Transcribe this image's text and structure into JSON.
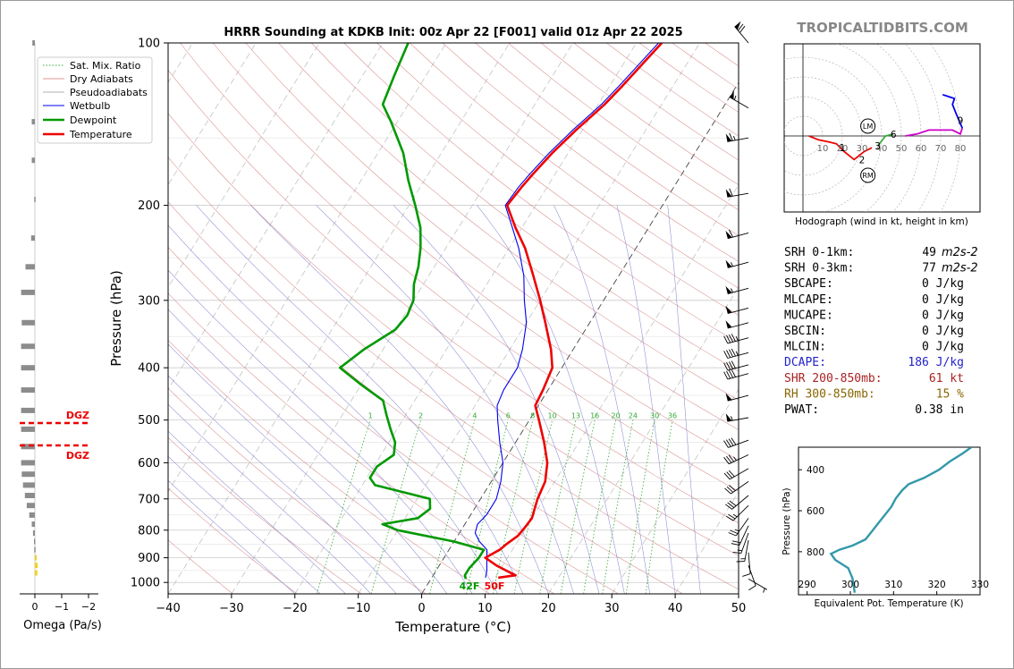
{
  "watermark": "TROPICALTIDBITS.COM",
  "chart_data": [
    {
      "type": "line",
      "subtype": "skew-t",
      "title": "HRRR Sounding at KDKB Init: 00z Apr 22 [F001] valid 01z Apr 22 2025",
      "xlabel": "Temperature (°C)",
      "ylabel": "Pressure (hPa)",
      "xlim": [
        -40,
        50
      ],
      "ylim": [
        1050,
        100
      ],
      "yscale": "log",
      "grid": true,
      "x_ticks": [
        -40,
        -30,
        -20,
        -10,
        0,
        10,
        20,
        30,
        40,
        50
      ],
      "x_tick_labels": [
        "−40",
        "−30",
        "−20",
        "−10",
        "0",
        "10",
        "20",
        "30",
        "40",
        "50"
      ],
      "y_ticks": [
        100,
        200,
        300,
        400,
        500,
        600,
        700,
        800,
        900,
        1000
      ],
      "y_tick_labels": [
        "100",
        "200",
        "300",
        "400",
        "500",
        "600",
        "700",
        "800",
        "900",
        "1000"
      ],
      "legend": {
        "placement": "top-left",
        "entries": [
          "Sat. Mix. Ratio",
          "Dry Adiabats",
          "Pseudoadiabats",
          "Wetbulb",
          "Dewpoint",
          "Temperature"
        ]
      },
      "mixing_ratio_labels": [
        "1",
        "2",
        "4",
        "6",
        "8",
        "10",
        "13",
        "16",
        "20",
        "24",
        "30",
        "36"
      ],
      "surface_labels": {
        "dewpoint": "42F",
        "temperature": "50F"
      },
      "colors": {
        "temperature": "#ee0000",
        "dewpoint": "#009900",
        "wetbulb": "#0000ee",
        "mixing_ratio": "#33aa33",
        "dry_adiabat": "#d07070",
        "pseudoadiabat": "#7777cc"
      },
      "series": [
        {
          "name": "Temperature",
          "points": [
            [
              980,
              10.5
            ],
            [
              970,
              13.0
            ],
            [
              955,
              11.5
            ],
            [
              930,
              9.0
            ],
            [
              900,
              6.5
            ],
            [
              870,
              8.0
            ],
            [
              850,
              8.5
            ],
            [
              820,
              9.5
            ],
            [
              790,
              9.8
            ],
            [
              760,
              10.0
            ],
            [
              730,
              9.5
            ],
            [
              700,
              9.0
            ],
            [
              650,
              8.5
            ],
            [
              600,
              7.0
            ],
            [
              550,
              4.5
            ],
            [
              500,
              1.5
            ],
            [
              470,
              -0.5
            ],
            [
              440,
              -0.8
            ],
            [
              400,
              -1.5
            ],
            [
              370,
              -3.5
            ],
            [
              330,
              -7.0
            ],
            [
              300,
              -10.0
            ],
            [
              270,
              -13.5
            ],
            [
              240,
              -17.5
            ],
            [
              220,
              -21.0
            ],
            [
              200,
              -24.5
            ],
            [
              185,
              -24.0
            ],
            [
              175,
              -23.5
            ],
            [
              160,
              -22.5
            ],
            [
              145,
              -21.0
            ],
            [
              130,
              -19.0
            ],
            [
              120,
              -18.0
            ],
            [
              100,
              -16.0
            ]
          ]
        },
        {
          "name": "Dewpoint",
          "points": [
            [
              985,
              5.5
            ],
            [
              970,
              5.0
            ],
            [
              940,
              5.0
            ],
            [
              900,
              5.5
            ],
            [
              870,
              5.5
            ],
            [
              840,
              0.0
            ],
            [
              800,
              -10.0
            ],
            [
              780,
              -13.0
            ],
            [
              760,
              -8.0
            ],
            [
              730,
              -7.0
            ],
            [
              700,
              -8.0
            ],
            [
              660,
              -18.0
            ],
            [
              640,
              -19.5
            ],
            [
              610,
              -19.5
            ],
            [
              580,
              -18.0
            ],
            [
              550,
              -19.0
            ],
            [
              520,
              -21.0
            ],
            [
              490,
              -23.0
            ],
            [
              460,
              -25.0
            ],
            [
              430,
              -30.0
            ],
            [
              400,
              -35.0
            ],
            [
              370,
              -33.0
            ],
            [
              340,
              -30.0
            ],
            [
              320,
              -29.5
            ],
            [
              300,
              -30.0
            ],
            [
              280,
              -31.5
            ],
            [
              260,
              -32.5
            ],
            [
              240,
              -34.0
            ],
            [
              220,
              -36.0
            ],
            [
              200,
              -39.0
            ],
            [
              180,
              -42.5
            ],
            [
              160,
              -46.0
            ],
            [
              140,
              -51.0
            ],
            [
              130,
              -54.0
            ],
            [
              115,
              -55.0
            ],
            [
              100,
              -56.0
            ]
          ]
        },
        {
          "name": "Wetbulb",
          "points": [
            [
              980,
              8.5
            ],
            [
              950,
              8.0
            ],
            [
              910,
              7.0
            ],
            [
              870,
              6.0
            ],
            [
              840,
              4.0
            ],
            [
              810,
              2.5
            ],
            [
              780,
              2.0
            ],
            [
              750,
              2.5
            ],
            [
              720,
              2.5
            ],
            [
              700,
              2.5
            ],
            [
              650,
              1.5
            ],
            [
              600,
              0.0
            ],
            [
              550,
              -2.5
            ],
            [
              500,
              -5.0
            ],
            [
              470,
              -6.5
            ],
            [
              440,
              -7.0
            ],
            [
              400,
              -7.0
            ],
            [
              370,
              -8.0
            ],
            [
              330,
              -10.0
            ],
            [
              300,
              -12.5
            ],
            [
              270,
              -15.0
            ],
            [
              240,
              -18.5
            ],
            [
              220,
              -21.5
            ],
            [
              200,
              -24.8
            ],
            [
              185,
              -24.5
            ],
            [
              175,
              -24.0
            ],
            [
              160,
              -23.0
            ],
            [
              145,
              -21.5
            ],
            [
              130,
              -19.5
            ],
            [
              120,
              -18.5
            ],
            [
              100,
              -16.5
            ]
          ]
        }
      ]
    },
    {
      "type": "line",
      "subtype": "hodograph",
      "title": "Hodograph (wind in kt, height in km)",
      "ring_labels": [
        "10",
        "20",
        "30",
        "40",
        "50",
        "60",
        "70",
        "80"
      ],
      "height_labels": [
        "1",
        "2",
        "3",
        "6",
        "9"
      ],
      "markers": [
        "LM",
        "RM"
      ],
      "points_kt": [
        [
          3,
          0
        ],
        [
          8,
          -2
        ],
        [
          13,
          -3
        ],
        [
          17,
          -4
        ],
        [
          21,
          -8
        ],
        [
          26,
          -12
        ],
        [
          31,
          -8
        ],
        [
          35,
          -6
        ],
        [
          38,
          -5
        ],
        [
          42,
          0
        ],
        [
          46,
          1
        ],
        [
          52,
          0
        ],
        [
          58,
          1
        ],
        [
          64,
          3
        ],
        [
          70,
          3
        ],
        [
          76,
          3
        ],
        [
          80,
          1
        ],
        [
          81,
          4
        ],
        [
          78,
          11
        ],
        [
          76,
          16
        ],
        [
          77,
          19
        ],
        [
          74,
          20
        ],
        [
          71,
          21
        ]
      ],
      "height_points": {
        "1": [
          20,
          -6
        ],
        "2": [
          30,
          -12
        ],
        "3": [
          38,
          -5
        ],
        "6": [
          46,
          1
        ],
        "9": [
          80,
          8
        ]
      },
      "marker_points": {
        "LM": [
          33,
          5
        ],
        "RM": [
          33,
          -20
        ]
      },
      "colors": [
        "#ee0000",
        "#33aa33",
        "#cc00cc",
        "#0000ee"
      ]
    },
    {
      "type": "line",
      "subtype": "theta-e-profile",
      "xlabel": "Equivalent Pot. Temperature (K)",
      "ylabel": "Pressure (hPa)",
      "xlim": [
        288,
        330
      ],
      "ylim": [
        1010,
        290
      ],
      "x_ticks": [
        "290",
        "300",
        "310",
        "320",
        "330"
      ],
      "y_ticks": [
        "400",
        "600",
        "800"
      ],
      "line_color": "#3399aa",
      "points": [
        [
          1000,
          301.0
        ],
        [
          970,
          300.8
        ],
        [
          930,
          300.5
        ],
        [
          880,
          299.5
        ],
        [
          840,
          296.5
        ],
        [
          810,
          295.5
        ],
        [
          790,
          297.5
        ],
        [
          770,
          300.5
        ],
        [
          740,
          303.5
        ],
        [
          700,
          305.0
        ],
        [
          660,
          306.5
        ],
        [
          620,
          308.0
        ],
        [
          580,
          309.5
        ],
        [
          540,
          310.5
        ],
        [
          500,
          312.0
        ],
        [
          470,
          313.5
        ],
        [
          440,
          317.0
        ],
        [
          400,
          320.5
        ],
        [
          360,
          323.0
        ],
        [
          320,
          326.0
        ],
        [
          290,
          328.0
        ]
      ]
    },
    {
      "type": "bar",
      "subtype": "omega-profile",
      "xlabel": "Omega (Pa/s)",
      "x_ticks": [
        "0",
        "−1",
        "−2"
      ],
      "dgz_label": "DGZ",
      "dgz_bounds_hpa": [
        505,
        560
      ],
      "bars": [
        [
          100,
          -0.4
        ],
        [
          140,
          -0.5
        ],
        [
          165,
          -0.5
        ],
        [
          195,
          -0.1
        ],
        [
          230,
          -0.6
        ],
        [
          260,
          -1.5
        ],
        [
          290,
          -2.2
        ],
        [
          330,
          -2.1
        ],
        [
          365,
          -2.2
        ],
        [
          400,
          -2.2
        ],
        [
          440,
          -2.2
        ],
        [
          480,
          -2.2
        ],
        [
          520,
          -2.2
        ],
        [
          560,
          -2.2
        ],
        [
          600,
          -2.2
        ],
        [
          630,
          -2.1
        ],
        [
          660,
          -1.9
        ],
        [
          690,
          -1.6
        ],
        [
          720,
          -1.3
        ],
        [
          750,
          -0.9
        ],
        [
          780,
          -0.5
        ],
        [
          810,
          -0.3
        ],
        [
          840,
          -0.15
        ],
        [
          870,
          -0.1
        ],
        [
          900,
          0.3
        ],
        [
          930,
          0.45
        ],
        [
          960,
          0.4
        ]
      ]
    }
  ],
  "stats": [
    {
      "label": "SRH 0-1km:",
      "value": "49",
      "unit": "m2s-2",
      "color": "#000000"
    },
    {
      "label": "SRH 0-3km:",
      "value": "77",
      "unit": "m2s-2",
      "color": "#000000"
    },
    {
      "label": "SBCAPE:",
      "value": "0 J/kg",
      "color": "#000000"
    },
    {
      "label": "MLCAPE:",
      "value": "0 J/kg",
      "color": "#000000"
    },
    {
      "label": "MUCAPE:",
      "value": "0 J/kg",
      "color": "#000000"
    },
    {
      "label": "SBCIN:",
      "value": "0 J/kg",
      "color": "#000000"
    },
    {
      "label": "MLCIN:",
      "value": "0 J/kg",
      "color": "#000000"
    },
    {
      "label": "DCAPE:",
      "value": "186 J/kg",
      "color": "#2222cc"
    },
    {
      "label": "SHR 200-850mb:",
      "value": "61 kt",
      "color": "#aa2222"
    },
    {
      "label": "RH 300-850mb:",
      "value": "15 %",
      "color": "#886600"
    },
    {
      "label": "PWAT:",
      "value": "0.38 in",
      "color": "#000000"
    }
  ],
  "wind_barbs": [
    [
      100,
      320,
      70
    ],
    [
      132,
      300,
      55
    ],
    [
      150,
      260,
      65
    ],
    [
      190,
      260,
      60
    ],
    [
      225,
      255,
      60
    ],
    [
      255,
      255,
      55
    ],
    [
      285,
      255,
      55
    ],
    [
      310,
      255,
      50
    ],
    [
      330,
      255,
      50
    ],
    [
      352,
      255,
      45
    ],
    [
      375,
      255,
      45
    ],
    [
      395,
      255,
      40
    ],
    [
      410,
      255,
      40
    ],
    [
      450,
      255,
      50
    ],
    [
      495,
      260,
      55
    ],
    [
      545,
      250,
      40
    ],
    [
      580,
      245,
      35
    ],
    [
      615,
      240,
      30
    ],
    [
      650,
      235,
      30
    ],
    [
      690,
      230,
      30
    ],
    [
      720,
      225,
      25
    ],
    [
      760,
      215,
      25
    ],
    [
      785,
      205,
      20
    ],
    [
      810,
      200,
      15
    ],
    [
      835,
      190,
      15
    ],
    [
      880,
      175,
      10
    ],
    [
      930,
      160,
      10
    ],
    [
      985,
      120,
      5
    ]
  ]
}
